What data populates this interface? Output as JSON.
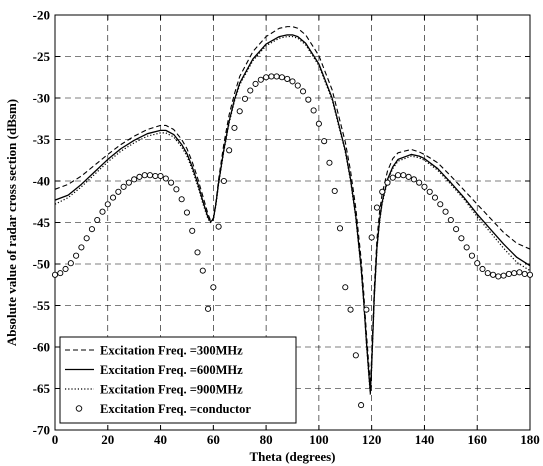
{
  "chart_data": {
    "type": "line",
    "title": "",
    "xlabel": "Theta (degrees)",
    "ylabel": "Absolute value of radar cross section (dBsm)",
    "xlim": [
      0,
      180
    ],
    "ylim": [
      -70,
      -20
    ],
    "x_ticks": [
      "0",
      "20",
      "40",
      "60",
      "80",
      "100",
      "120",
      "140",
      "160",
      "180"
    ],
    "y_ticks": [
      "-20",
      "-25",
      "-30",
      "-35",
      "-40",
      "-45",
      "-50",
      "-55",
      "-60",
      "-65",
      "-70"
    ],
    "grid": true,
    "legend_position": "bottom-left",
    "series": [
      {
        "name": "Excitation Freq. =300MHz",
        "style": "dashed",
        "color": "#000000",
        "x": [
          0,
          5,
          10,
          15,
          20,
          25,
          30,
          35,
          40,
          42,
          45,
          48,
          50,
          52,
          54,
          56,
          58,
          59,
          60,
          61,
          62,
          64,
          66,
          68,
          70,
          75,
          80,
          85,
          88,
          90,
          92,
          95,
          100,
          105,
          110,
          112,
          114,
          116,
          117,
          118,
          119,
          119.5,
          120,
          120.5,
          121,
          122,
          123,
          124,
          126,
          128,
          130,
          135,
          138,
          140,
          145,
          150,
          155,
          160,
          165,
          170,
          175,
          180
        ],
        "y": [
          -41.0,
          -40.4,
          -39.4,
          -38.1,
          -36.8,
          -35.6,
          -34.6,
          -33.8,
          -33.3,
          -33.3,
          -33.8,
          -35.0,
          -36.1,
          -37.7,
          -39.6,
          -41.8,
          -44.0,
          -44.8,
          -44.5,
          -42.5,
          -39.8,
          -35.5,
          -32.0,
          -29.5,
          -27.4,
          -24.4,
          -22.6,
          -21.6,
          -21.4,
          -21.4,
          -21.6,
          -22.4,
          -24.9,
          -29.0,
          -35.3,
          -38.8,
          -43.3,
          -49.4,
          -53.5,
          -58.3,
          -62.5,
          -64.5,
          -61.2,
          -57.0,
          -52.8,
          -47.0,
          -43.7,
          -41.5,
          -38.8,
          -37.3,
          -36.6,
          -36.2,
          -36.5,
          -36.8,
          -37.8,
          -39.4,
          -41.1,
          -42.8,
          -44.5,
          -46.2,
          -47.5,
          -48.2
        ]
      },
      {
        "name": "Excitation Freq. =600MHz",
        "style": "solid",
        "color": "#000000",
        "x": [
          0,
          5,
          10,
          15,
          20,
          25,
          30,
          35,
          40,
          42,
          45,
          48,
          50,
          52,
          54,
          56,
          58,
          59,
          60,
          61,
          62,
          64,
          66,
          68,
          70,
          75,
          80,
          85,
          88,
          90,
          92,
          95,
          100,
          105,
          110,
          112,
          114,
          116,
          117,
          118,
          119,
          119.5,
          120,
          120.5,
          121,
          122,
          123,
          124,
          126,
          128,
          130,
          135,
          138,
          140,
          145,
          150,
          155,
          160,
          165,
          170,
          175,
          180
        ],
        "y": [
          -42.3,
          -41.7,
          -40.4,
          -38.9,
          -37.4,
          -36.1,
          -35.1,
          -34.3,
          -33.9,
          -33.9,
          -34.4,
          -35.6,
          -36.7,
          -38.3,
          -40.2,
          -42.4,
          -44.4,
          -44.9,
          -44.6,
          -42.7,
          -40.2,
          -36.2,
          -32.8,
          -30.2,
          -28.2,
          -25.3,
          -23.5,
          -22.6,
          -22.4,
          -22.4,
          -22.6,
          -23.4,
          -25.9,
          -30.0,
          -36.3,
          -39.8,
          -44.3,
          -50.4,
          -54.5,
          -59.3,
          -63.5,
          -65.5,
          -62.2,
          -58.0,
          -53.8,
          -48.0,
          -44.7,
          -42.5,
          -39.8,
          -38.3,
          -37.4,
          -36.8,
          -37.0,
          -37.3,
          -38.5,
          -40.2,
          -42.0,
          -44.0,
          -45.8,
          -47.6,
          -49.2,
          -50.2
        ]
      },
      {
        "name": "Excitation Freq. =900MHz",
        "style": "dotted",
        "color": "#000000",
        "x": [
          0,
          5,
          10,
          15,
          20,
          25,
          30,
          35,
          40,
          42,
          45,
          48,
          50,
          52,
          54,
          56,
          58,
          59,
          60,
          61,
          62,
          64,
          66,
          68,
          70,
          75,
          80,
          85,
          88,
          90,
          92,
          95,
          100,
          105,
          110,
          112,
          114,
          116,
          117,
          118,
          119,
          119.5,
          120,
          120.5,
          121,
          122,
          123,
          124,
          126,
          128,
          130,
          135,
          138,
          140,
          145,
          150,
          155,
          160,
          165,
          170,
          175,
          180
        ],
        "y": [
          -42.8,
          -42.0,
          -40.7,
          -39.2,
          -37.7,
          -36.4,
          -35.4,
          -34.6,
          -34.2,
          -34.2,
          -34.7,
          -35.9,
          -37.0,
          -38.6,
          -40.5,
          -42.7,
          -44.6,
          -45.0,
          -44.7,
          -42.9,
          -40.4,
          -36.4,
          -33.0,
          -30.4,
          -28.4,
          -25.5,
          -23.7,
          -22.8,
          -22.6,
          -22.6,
          -22.8,
          -23.6,
          -26.1,
          -30.2,
          -36.5,
          -40.0,
          -44.5,
          -50.6,
          -54.7,
          -59.5,
          -63.8,
          -65.8,
          -62.5,
          -58.2,
          -54.0,
          -48.2,
          -44.9,
          -42.7,
          -40.0,
          -38.5,
          -37.6,
          -37.0,
          -37.2,
          -37.5,
          -38.7,
          -40.4,
          -42.2,
          -44.3,
          -46.2,
          -48.1,
          -49.8,
          -50.8
        ]
      },
      {
        "name": "Excitation Freq. =conductor",
        "style": "circle-markers",
        "color": "#000000",
        "x": [
          0,
          2,
          4,
          6,
          8,
          10,
          12,
          14,
          16,
          18,
          20,
          22,
          24,
          26,
          28,
          30,
          32,
          34,
          36,
          38,
          40,
          42,
          44,
          46,
          48,
          50,
          52,
          54,
          56,
          58,
          60,
          62,
          64,
          66,
          68,
          70,
          72,
          74,
          76,
          78,
          80,
          82,
          84,
          86,
          88,
          90,
          92,
          94,
          96,
          98,
          100,
          102,
          104,
          106,
          108,
          110,
          112,
          114,
          116,
          118,
          120,
          122,
          124,
          126,
          128,
          130,
          132,
          134,
          136,
          138,
          140,
          142,
          144,
          146,
          148,
          150,
          152,
          154,
          156,
          158,
          160,
          162,
          164,
          166,
          168,
          170,
          172,
          174,
          176,
          178,
          180
        ],
        "y": [
          -51.3,
          -51.1,
          -50.6,
          -49.9,
          -49.0,
          -48.0,
          -46.9,
          -45.8,
          -44.7,
          -43.7,
          -42.8,
          -42.0,
          -41.3,
          -40.7,
          -40.2,
          -39.8,
          -39.5,
          -39.3,
          -39.3,
          -39.4,
          -39.4,
          -39.7,
          -40.2,
          -41.0,
          -42.2,
          -43.8,
          -46.0,
          -48.6,
          -50.8,
          -55.4,
          -52.8,
          -45.5,
          -40.0,
          -36.3,
          -33.6,
          -31.6,
          -30.1,
          -29.1,
          -28.3,
          -27.8,
          -27.5,
          -27.4,
          -27.4,
          -27.5,
          -27.7,
          -28.0,
          -28.5,
          -29.2,
          -30.2,
          -31.5,
          -33.1,
          -35.2,
          -37.8,
          -41.2,
          -45.7,
          -52.8,
          -55.5,
          -61.0,
          -67.0,
          -55.5,
          -46.8,
          -43.2,
          -41.3,
          -40.2,
          -39.6,
          -39.3,
          -39.3,
          -39.5,
          -39.8,
          -40.2,
          -40.7,
          -41.3,
          -42.0,
          -42.8,
          -43.7,
          -44.7,
          -45.8,
          -46.9,
          -48.0,
          -49.0,
          -49.9,
          -50.6,
          -51.1,
          -51.3,
          -51.5,
          -51.4,
          -51.2,
          -51.1,
          -51.0,
          -51.2,
          -51.3
        ]
      }
    ]
  }
}
